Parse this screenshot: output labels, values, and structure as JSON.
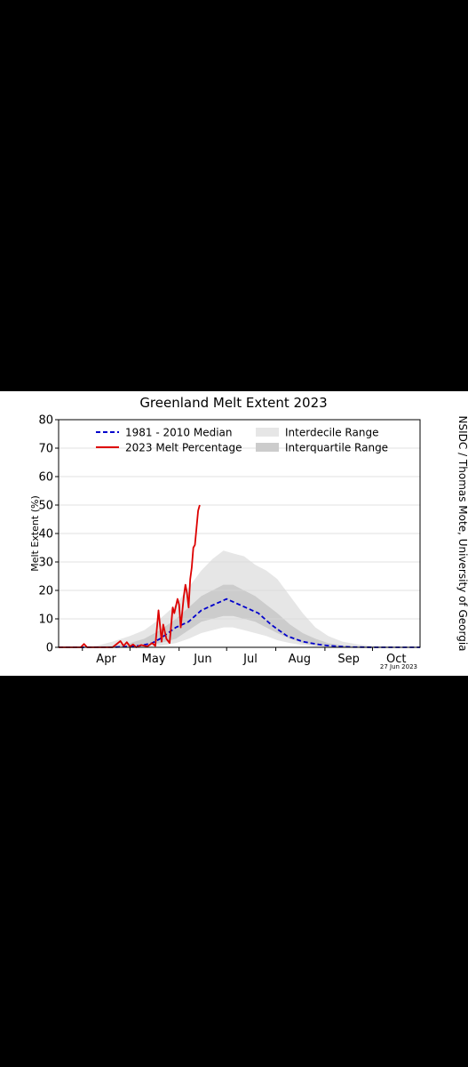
{
  "chart_data": {
    "type": "line",
    "title": "Greenland Melt Extent 2023",
    "ylabel": "Melt Extent (%)",
    "xlabel": "",
    "ylim": [
      0,
      80
    ],
    "yticks": [
      0,
      10,
      20,
      30,
      40,
      50,
      60,
      70,
      80
    ],
    "grid": true,
    "legend_position": "top",
    "date_stamp": "27 Jun 2023",
    "credit": "NSIDC / Thomas Mote, University of Georgia",
    "xlim": [
      "2023-03-17",
      "2023-10-31"
    ],
    "month_ticks": [
      {
        "label": "Apr",
        "date": "2023-04-01"
      },
      {
        "label": "May",
        "date": "2023-05-01"
      },
      {
        "label": "Jun",
        "date": "2023-06-01"
      },
      {
        "label": "Jul",
        "date": "2023-07-01"
      },
      {
        "label": "Aug",
        "date": "2023-08-01"
      },
      {
        "label": "Sep",
        "date": "2023-09-01"
      },
      {
        "label": "Oct",
        "date": "2023-10-01"
      }
    ],
    "series": [
      {
        "name": "1981 - 2010 Median",
        "color": "#0000cc",
        "style": "dashed",
        "x": [
          "2023-03-17",
          "2023-04-20",
          "2023-05-01",
          "2023-05-08",
          "2023-05-15",
          "2023-05-20",
          "2023-05-25",
          "2023-05-30",
          "2023-06-03",
          "2023-06-07",
          "2023-06-11",
          "2023-06-15",
          "2023-06-19",
          "2023-06-23",
          "2023-06-27",
          "2023-07-01",
          "2023-07-05",
          "2023-07-09",
          "2023-07-13",
          "2023-07-17",
          "2023-07-21",
          "2023-07-25",
          "2023-07-29",
          "2023-08-03",
          "2023-08-08",
          "2023-08-13",
          "2023-08-18",
          "2023-08-23",
          "2023-08-28",
          "2023-09-03",
          "2023-09-10",
          "2023-09-18",
          "2023-10-01",
          "2023-10-31"
        ],
        "values": [
          0,
          0,
          0.3,
          0.6,
          1.5,
          3,
          5,
          7,
          8,
          9,
          11,
          13,
          14,
          15,
          16,
          17,
          16,
          15,
          14,
          13,
          12,
          10,
          8,
          6,
          4,
          3,
          2,
          1.5,
          1,
          0.6,
          0.3,
          0.1,
          0,
          0
        ]
      },
      {
        "name": "2023 Melt Percentage",
        "color": "#dd0000",
        "style": "solid",
        "x": [
          "2023-03-17",
          "2023-03-31",
          "2023-04-02",
          "2023-04-04",
          "2023-04-20",
          "2023-04-25",
          "2023-04-27",
          "2023-04-29",
          "2023-05-01",
          "2023-05-03",
          "2023-05-05",
          "2023-05-08",
          "2023-05-12",
          "2023-05-15",
          "2023-05-17",
          "2023-05-19",
          "2023-05-21",
          "2023-05-22",
          "2023-05-24",
          "2023-05-26",
          "2023-05-28",
          "2023-05-29",
          "2023-05-31",
          "2023-06-01",
          "2023-06-02",
          "2023-06-04",
          "2023-06-05",
          "2023-06-06",
          "2023-06-07",
          "2023-06-08",
          "2023-06-09",
          "2023-06-10",
          "2023-06-11",
          "2023-06-12",
          "2023-06-13",
          "2023-06-14"
        ],
        "values": [
          0,
          0,
          1.2,
          0,
          0,
          2.2,
          0.5,
          1.8,
          0.3,
          1,
          0,
          0.8,
          0.3,
          1.5,
          0.5,
          13,
          2,
          8,
          3,
          1.5,
          14,
          12,
          17,
          15,
          7,
          18,
          22,
          19,
          14,
          24,
          28,
          35,
          36,
          42,
          48,
          50
        ]
      }
    ],
    "ranges": [
      {
        "name": "Interdecile Range",
        "color": "#e6e6e6",
        "x": [
          "2023-03-17",
          "2023-04-10",
          "2023-04-20",
          "2023-05-01",
          "2023-05-10",
          "2023-05-20",
          "2023-05-30",
          "2023-06-07",
          "2023-06-15",
          "2023-06-22",
          "2023-06-29",
          "2023-07-05",
          "2023-07-12",
          "2023-07-19",
          "2023-07-26",
          "2023-08-02",
          "2023-08-10",
          "2023-08-18",
          "2023-08-26",
          "2023-09-03",
          "2023-09-12",
          "2023-09-22",
          "2023-10-05",
          "2023-10-31"
        ],
        "upper": [
          0,
          0.5,
          2,
          4,
          6,
          10,
          15,
          21,
          27,
          31,
          34,
          33,
          32,
          29,
          27,
          24,
          18,
          12,
          7,
          4,
          2,
          1,
          0.3,
          0
        ],
        "lower": [
          0,
          0,
          0,
          0,
          0,
          0.5,
          1.5,
          3,
          5,
          6,
          7,
          7,
          6,
          5,
          4,
          2.5,
          1.5,
          0.8,
          0.3,
          0.1,
          0,
          0,
          0,
          0
        ]
      },
      {
        "name": "Interquartile Range",
        "color": "#cccccc",
        "x": [
          "2023-03-17",
          "2023-04-20",
          "2023-05-01",
          "2023-05-10",
          "2023-05-20",
          "2023-05-30",
          "2023-06-07",
          "2023-06-15",
          "2023-06-22",
          "2023-06-29",
          "2023-07-05",
          "2023-07-12",
          "2023-07-19",
          "2023-07-26",
          "2023-08-02",
          "2023-08-10",
          "2023-08-18",
          "2023-08-26",
          "2023-09-03",
          "2023-09-12",
          "2023-09-22",
          "2023-10-31"
        ],
        "upper": [
          0,
          0.5,
          1.5,
          3,
          6,
          10,
          14,
          18,
          20,
          22,
          22,
          20,
          18,
          15,
          12,
          8,
          5,
          3,
          1.5,
          0.7,
          0.2,
          0
        ],
        "lower": [
          0,
          0,
          0.2,
          0.5,
          1.5,
          3,
          6,
          9,
          10,
          11,
          11,
          10,
          9,
          7,
          5,
          3,
          1.5,
          0.7,
          0.3,
          0.1,
          0,
          0
        ]
      }
    ]
  }
}
